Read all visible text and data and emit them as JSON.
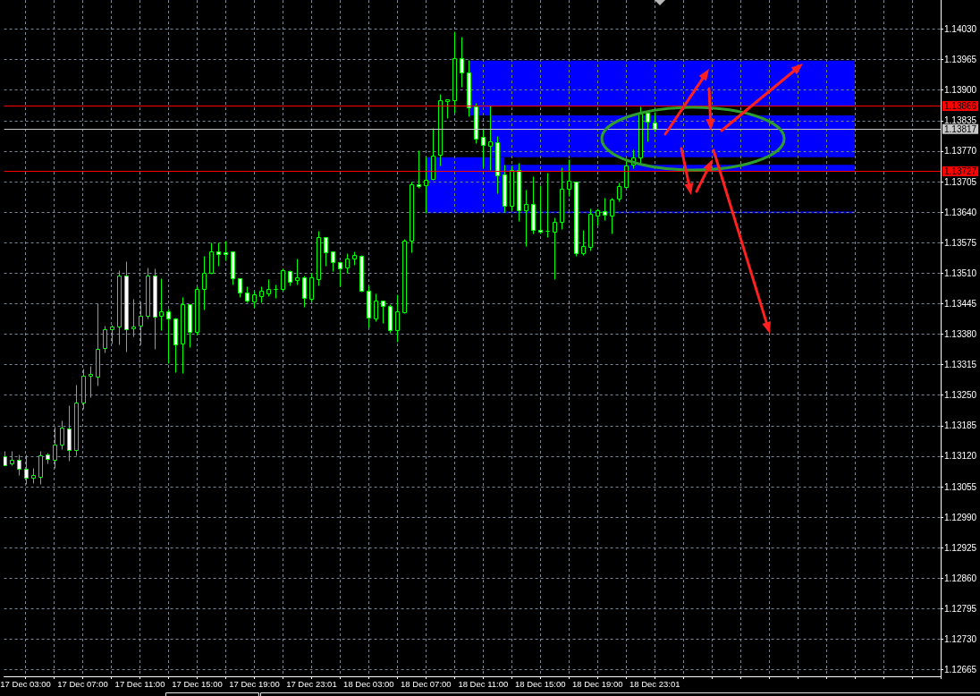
{
  "chart_data": {
    "type": "candlestick",
    "categories": [
      null,
      null,
      null,
      "17 Dec 03:00",
      null,
      null,
      null,
      null,
      null,
      null,
      null,
      "17 Dec 07:00",
      null,
      null,
      null,
      null,
      null,
      null,
      null,
      "17 Dec 11:00",
      null,
      null,
      null,
      null,
      null,
      null,
      null,
      "17 Dec 15:00",
      null,
      null,
      null,
      null,
      null,
      null,
      null,
      "17 Dec 19:00",
      null,
      null,
      null,
      null,
      null,
      null,
      null,
      "17 Dec 23:01",
      null,
      null,
      null,
      null,
      null,
      null,
      null,
      "18 Dec 03:00",
      null,
      null,
      null,
      null,
      null,
      null,
      null,
      "18 Dec 07:00",
      null,
      null,
      null,
      null,
      null,
      null,
      null,
      "18 Dec 11:00",
      null,
      null,
      null,
      null,
      null,
      null,
      null,
      "18 Dec 15:00",
      null,
      null,
      null,
      null,
      null,
      null,
      null,
      "18 Dec 19:00",
      null,
      null,
      null,
      null,
      null,
      null,
      null,
      "18 Dec 23:01",
      null,
      null,
      null,
      null,
      null,
      null,
      null,
      null,
      null,
      null,
      null,
      null,
      null,
      null,
      null,
      null,
      null,
      null,
      null,
      null,
      null,
      null,
      null,
      null,
      null,
      null,
      null,
      null,
      null,
      null,
      null,
      null,
      null,
      null,
      null,
      null,
      null,
      null,
      null,
      null
    ],
    "ohlc": [
      [
        1.13119,
        1.13131,
        1.131,
        1.131
      ],
      [
        1.13104,
        1.13131,
        1.13101,
        1.13112
      ],
      [
        1.13112,
        1.13123,
        1.1308,
        1.13094
      ],
      [
        1.13094,
        1.13123,
        1.13061,
        1.13075
      ],
      [
        1.13075,
        1.13095,
        1.13063,
        1.13079
      ],
      [
        1.13077,
        1.13131,
        1.13061,
        1.13121
      ],
      [
        1.13123,
        1.13128,
        1.13105,
        1.13114
      ],
      [
        1.13112,
        1.13182,
        1.13096,
        1.13145
      ],
      [
        1.13145,
        1.13197,
        1.13135,
        1.13181
      ],
      [
        1.13179,
        1.13229,
        1.13111,
        1.13133
      ],
      [
        1.13133,
        1.13273,
        1.13121,
        1.13235
      ],
      [
        1.13235,
        1.13307,
        1.13221,
        1.13292
      ],
      [
        1.13292,
        1.13313,
        1.13245,
        1.13296
      ],
      [
        1.1329,
        1.13446,
        1.1327,
        1.13349
      ],
      [
        1.1335,
        1.13398,
        1.13341,
        1.13391
      ],
      [
        1.13391,
        1.134,
        1.13361,
        1.13397
      ],
      [
        1.13397,
        1.13516,
        1.13358,
        1.13504
      ],
      [
        1.13504,
        1.13535,
        1.13343,
        1.13391
      ],
      [
        1.13393,
        1.13455,
        1.13376,
        1.13397
      ],
      [
        1.13399,
        1.13449,
        1.13358,
        1.1342
      ],
      [
        1.1342,
        1.13522,
        1.13413,
        1.13504
      ],
      [
        1.13504,
        1.1352,
        1.13348,
        1.13418
      ],
      [
        1.1342,
        1.13499,
        1.13389,
        1.13428
      ],
      [
        1.13428,
        1.13434,
        1.13318,
        1.13414
      ],
      [
        1.13414,
        1.13416,
        1.13299,
        1.13359
      ],
      [
        1.13361,
        1.13459,
        1.13297,
        1.13443
      ],
      [
        1.13443,
        1.13444,
        1.13353,
        1.13384
      ],
      [
        1.13384,
        1.13483,
        1.13379,
        1.13476
      ],
      [
        1.13476,
        1.13547,
        1.13433,
        1.1351
      ],
      [
        1.1351,
        1.13575,
        1.13509,
        1.13556
      ],
      [
        1.13556,
        1.13575,
        1.13525,
        1.1355
      ],
      [
        1.13554,
        1.13579,
        1.13538,
        1.1355
      ],
      [
        1.13556,
        1.13557,
        1.13486,
        1.13499
      ],
      [
        1.13499,
        1.135,
        1.1346,
        1.13468
      ],
      [
        1.13468,
        1.13483,
        1.13448,
        1.13452
      ],
      [
        1.1345,
        1.13473,
        1.13437,
        1.13464
      ],
      [
        1.13462,
        1.13482,
        1.13448,
        1.13472
      ],
      [
        1.13467,
        1.13497,
        1.13462,
        1.13477
      ],
      [
        1.13477,
        1.13485,
        1.13458,
        1.13476
      ],
      [
        1.13477,
        1.13521,
        1.13472,
        1.13516
      ],
      [
        1.13514,
        1.13516,
        1.13484,
        1.13492
      ],
      [
        1.13495,
        1.13541,
        1.13486,
        1.13502
      ],
      [
        1.13502,
        1.13504,
        1.13439,
        1.13458
      ],
      [
        1.13456,
        1.1351,
        1.13449,
        1.13501
      ],
      [
        1.13498,
        1.136,
        1.13484,
        1.13586
      ],
      [
        1.13586,
        1.13587,
        1.13525,
        1.13555
      ],
      [
        1.13556,
        1.13557,
        1.13515,
        1.13533
      ],
      [
        1.13533,
        1.13536,
        1.13483,
        1.13521
      ],
      [
        1.13523,
        1.13552,
        1.13511,
        1.13542
      ],
      [
        1.13542,
        1.13557,
        1.13528,
        1.13548
      ],
      [
        1.13546,
        1.13548,
        1.1347,
        1.13473
      ],
      [
        1.13472,
        1.13484,
        1.13394,
        1.13416
      ],
      [
        1.13414,
        1.13467,
        1.13408,
        1.13451
      ],
      [
        1.13451,
        1.13452,
        1.13404,
        1.13441
      ],
      [
        1.13441,
        1.13444,
        1.13383,
        1.13388
      ],
      [
        1.13388,
        1.13465,
        1.13364,
        1.13428
      ],
      [
        1.13426,
        1.13583,
        1.13424,
        1.13579
      ],
      [
        1.13579,
        1.13705,
        1.13555,
        1.13699
      ],
      [
        1.13699,
        1.13772,
        1.13692,
        1.13695
      ],
      [
        1.13697,
        1.13758,
        1.13638,
        1.13709
      ],
      [
        1.1371,
        1.1382,
        1.13708,
        1.1376
      ],
      [
        1.13762,
        1.13891,
        1.13739,
        1.13879
      ],
      [
        1.13877,
        1.13881,
        1.1384,
        1.13881
      ],
      [
        1.13879,
        1.14025,
        1.13852,
        1.13969
      ],
      [
        1.13969,
        1.14013,
        1.13908,
        1.13938
      ],
      [
        1.13938,
        1.13964,
        1.13845,
        1.13864
      ],
      [
        1.13866,
        1.13872,
        1.13787,
        1.13797
      ],
      [
        1.138,
        1.1382,
        1.13736,
        1.13784
      ],
      [
        1.13781,
        1.13867,
        1.13729,
        1.13791
      ],
      [
        1.13789,
        1.13803,
        1.1368,
        1.13718
      ],
      [
        1.1372,
        1.13742,
        1.13641,
        1.13653
      ],
      [
        1.13653,
        1.13739,
        1.13645,
        1.1373
      ],
      [
        1.13729,
        1.13746,
        1.13621,
        1.13644
      ],
      [
        1.13645,
        1.13687,
        1.13568,
        1.13657
      ],
      [
        1.13657,
        1.13717,
        1.13595,
        1.13603
      ],
      [
        1.13603,
        1.13698,
        1.13594,
        1.13599
      ],
      [
        1.136,
        1.13725,
        1.13586,
        1.136
      ],
      [
        1.13599,
        1.13629,
        1.13498,
        1.13619
      ],
      [
        1.13619,
        1.13736,
        1.13604,
        1.1369
      ],
      [
        1.1369,
        1.13753,
        1.13675,
        1.13707
      ],
      [
        1.13705,
        1.13706,
        1.13546,
        1.13553
      ],
      [
        1.13553,
        1.13602,
        1.13548,
        1.13567
      ],
      [
        1.13565,
        1.13648,
        1.13558,
        1.13636
      ],
      [
        1.13632,
        1.13648,
        1.13611,
        1.13644
      ],
      [
        1.13642,
        1.13671,
        1.13623,
        1.13634
      ],
      [
        1.13632,
        1.13671,
        1.13595,
        1.13667
      ],
      [
        1.13668,
        1.13704,
        1.13664,
        1.13695
      ],
      [
        1.13693,
        1.13748,
        1.13692,
        1.13739
      ],
      [
        1.13742,
        1.13774,
        1.13734,
        1.13757
      ],
      [
        1.13757,
        1.13866,
        1.13746,
        1.1385
      ],
      [
        1.13852,
        1.13853,
        1.1379,
        1.13832
      ],
      [
        1.13831,
        1.13854,
        1.13812,
        1.13817
      ],
      null,
      null,
      null,
      null,
      null,
      null,
      null,
      null,
      null,
      null,
      null,
      null,
      null,
      null,
      null,
      null,
      null,
      null,
      null,
      null,
      null,
      null,
      null,
      null,
      null,
      null,
      null,
      null,
      null,
      null,
      null,
      null,
      null,
      null,
      null,
      null,
      null,
      null,
      null,
      null
    ],
    "color": "#00ff00",
    "ylim": [
      1.12651,
      1.14092
    ],
    "yticks": [
      {
        "value": 1.12665,
        "label": "1.12665"
      },
      {
        "value": 1.1273,
        "label": "1.12730"
      },
      {
        "value": 1.12795,
        "label": "1.12795"
      },
      {
        "value": 1.1286,
        "label": "1.12860"
      },
      {
        "value": 1.12925,
        "label": "1.12925"
      },
      {
        "value": 1.1299,
        "label": "1.12990"
      },
      {
        "value": 1.13055,
        "label": "1.13055"
      },
      {
        "value": 1.1312,
        "label": "1.13120"
      },
      {
        "value": 1.13185,
        "label": "1.13185"
      },
      {
        "value": 1.1325,
        "label": "1.13250"
      },
      {
        "value": 1.13315,
        "label": "1.13315"
      },
      {
        "value": 1.1338,
        "label": "1.13380"
      },
      {
        "value": 1.13445,
        "label": "1.13445"
      },
      {
        "value": 1.1351,
        "label": "1.13510"
      },
      {
        "value": 1.13575,
        "label": "1.13575"
      },
      {
        "value": 1.1364,
        "label": "1.13640"
      },
      {
        "value": 1.13705,
        "label": "1.13705"
      },
      {
        "value": 1.1377,
        "label": "1.13770"
      },
      {
        "value": 1.13835,
        "label": "1.13835"
      },
      {
        "value": 1.139,
        "label": "1.13900"
      },
      {
        "value": 1.13965,
        "label": "1.13965"
      },
      {
        "value": 1.1403,
        "label": "1.14030"
      }
    ],
    "grid": true,
    "ref_lines": [
      {
        "axis": "y",
        "value": 1.13866,
        "label": "1.13866",
        "color": "#ff0000"
      },
      {
        "axis": "y",
        "value": 1.13817,
        "label": "1.13817",
        "color": "#c8c8c8"
      },
      {
        "axis": "y",
        "value": 1.13727,
        "label": "1.13727",
        "color": "#ff0000"
      }
    ],
    "bands": [
      {
        "axis": "y",
        "from": 1.13846,
        "to": 1.13963,
        "color": "#0000ff"
      },
      {
        "axis": "y",
        "from": 1.13757,
        "to": 1.13866,
        "color": "#0000ff"
      },
      {
        "axis": "y",
        "from": 1.13638,
        "to": 1.13757,
        "color": "#0000ff"
      },
      {
        "axis": "y",
        "from": 1.13727,
        "to": 1.13741,
        "color": "#0000ff"
      },
      {
        "axis": "y",
        "from": 1.13638,
        "to": 1.13641,
        "color": "#0000ff"
      }
    ]
  }
}
